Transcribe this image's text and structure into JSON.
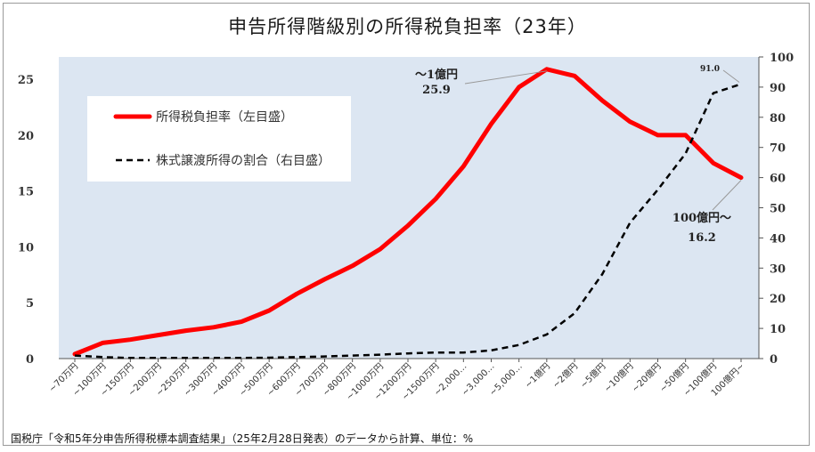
{
  "chart_data": {
    "type": "line",
    "title": "申告所得階級別の所得税負担率（23年）",
    "categories": [
      "~70万円",
      "~100万円",
      "~150万円",
      "~200万円",
      "~250万円",
      "~300万円",
      "~400万円",
      "~500万円",
      "~600万円",
      "~700万円",
      "~800万円",
      "~1000万円",
      "~1200万円",
      "~1500万円",
      "~2,000…",
      "~3,000…",
      "~5,000…",
      "~1億円",
      "~2億円",
      "~5億円",
      "~10億円",
      "~20億円",
      "~50億円",
      "~100億円",
      "100億円~"
    ],
    "y_left": {
      "ticks": [
        "0",
        "5",
        "10",
        "15",
        "20",
        "25"
      ],
      "ylim": [
        0,
        27
      ]
    },
    "y_right": {
      "ticks": [
        "0",
        "10",
        "20",
        "30",
        "40",
        "50",
        "60",
        "70",
        "80",
        "90",
        "100"
      ],
      "ylim": [
        0,
        100
      ]
    },
    "series": [
      {
        "name": "所得税負担率（左目盛）",
        "axis": "left",
        "color": "#ff0000",
        "style": "solid",
        "values": [
          0.4,
          1.4,
          1.7,
          2.1,
          2.5,
          2.8,
          3.3,
          4.3,
          5.8,
          7.1,
          8.3,
          9.8,
          11.9,
          14.3,
          17.2,
          21.0,
          24.3,
          25.9,
          25.3,
          23.1,
          21.2,
          20.0,
          20.0,
          17.5,
          16.2
        ]
      },
      {
        "name": "株式譲渡所得の割合（右目盛）",
        "axis": "right",
        "color": "#000000",
        "style": "dashed",
        "values": [
          1.0,
          0.5,
          0.2,
          0.2,
          0.2,
          0.2,
          0.2,
          0.3,
          0.5,
          0.7,
          1.0,
          1.3,
          1.7,
          2.0,
          2.0,
          2.7,
          4.5,
          8.0,
          15.0,
          28.0,
          45.0,
          56.0,
          68.0,
          88.0,
          91.0
        ]
      }
    ],
    "legend": {
      "placement": "top-left"
    },
    "annotations": [
      {
        "label": "～1億円",
        "value": "25.9",
        "series": 0,
        "category_index": 17
      },
      {
        "label": "100億円～",
        "value": "16.2",
        "series": 0,
        "category_index": 24
      },
      {
        "label": "",
        "value": "91.0",
        "series": 1,
        "category_index": 24
      }
    ],
    "plot_background": "#dce6f2"
  },
  "source_note": "国税庁「令和5年分申告所得税標本調査結果」（25年2月28日発表）のデータから計算、単位：%"
}
